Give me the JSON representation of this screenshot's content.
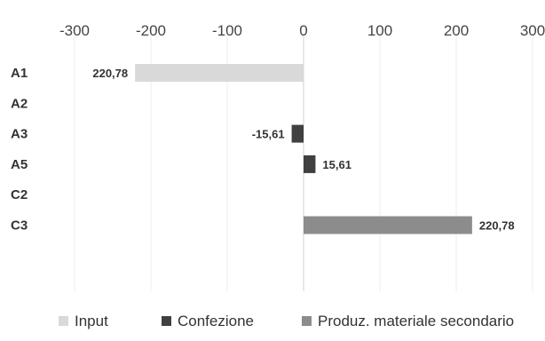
{
  "chart_data": {
    "type": "bar",
    "orientation": "horizontal",
    "categories": [
      "A1",
      "A2",
      "A3",
      "A5",
      "C2",
      "C3"
    ],
    "series": [
      {
        "name": "Input",
        "color": "#d9d9d9",
        "values": [
          -220.78,
          null,
          null,
          null,
          null,
          null
        ],
        "labels": [
          "220,78",
          "",
          "",
          "",
          "",
          ""
        ]
      },
      {
        "name": "Confezione",
        "color": "#404040",
        "values": [
          null,
          null,
          -15.61,
          15.61,
          null,
          null
        ],
        "labels": [
          "",
          "",
          "-15,61",
          "15,61",
          "",
          ""
        ]
      },
      {
        "name": "Produz. materiale secondario",
        "color": "#8c8c8c",
        "values": [
          null,
          null,
          null,
          null,
          null,
          220.78
        ],
        "labels": [
          "",
          "",
          "",
          "",
          "",
          "220,78"
        ]
      }
    ],
    "xlim": [
      -300,
      300
    ],
    "xticks": [
      -300,
      -200,
      -100,
      0,
      100,
      200,
      300
    ],
    "xtick_labels": [
      "-300",
      "-200",
      "-100",
      "0",
      "100",
      "200",
      "300"
    ],
    "grid": true,
    "legend_position": "bottom",
    "title": "",
    "xlabel": "",
    "ylabel": ""
  }
}
